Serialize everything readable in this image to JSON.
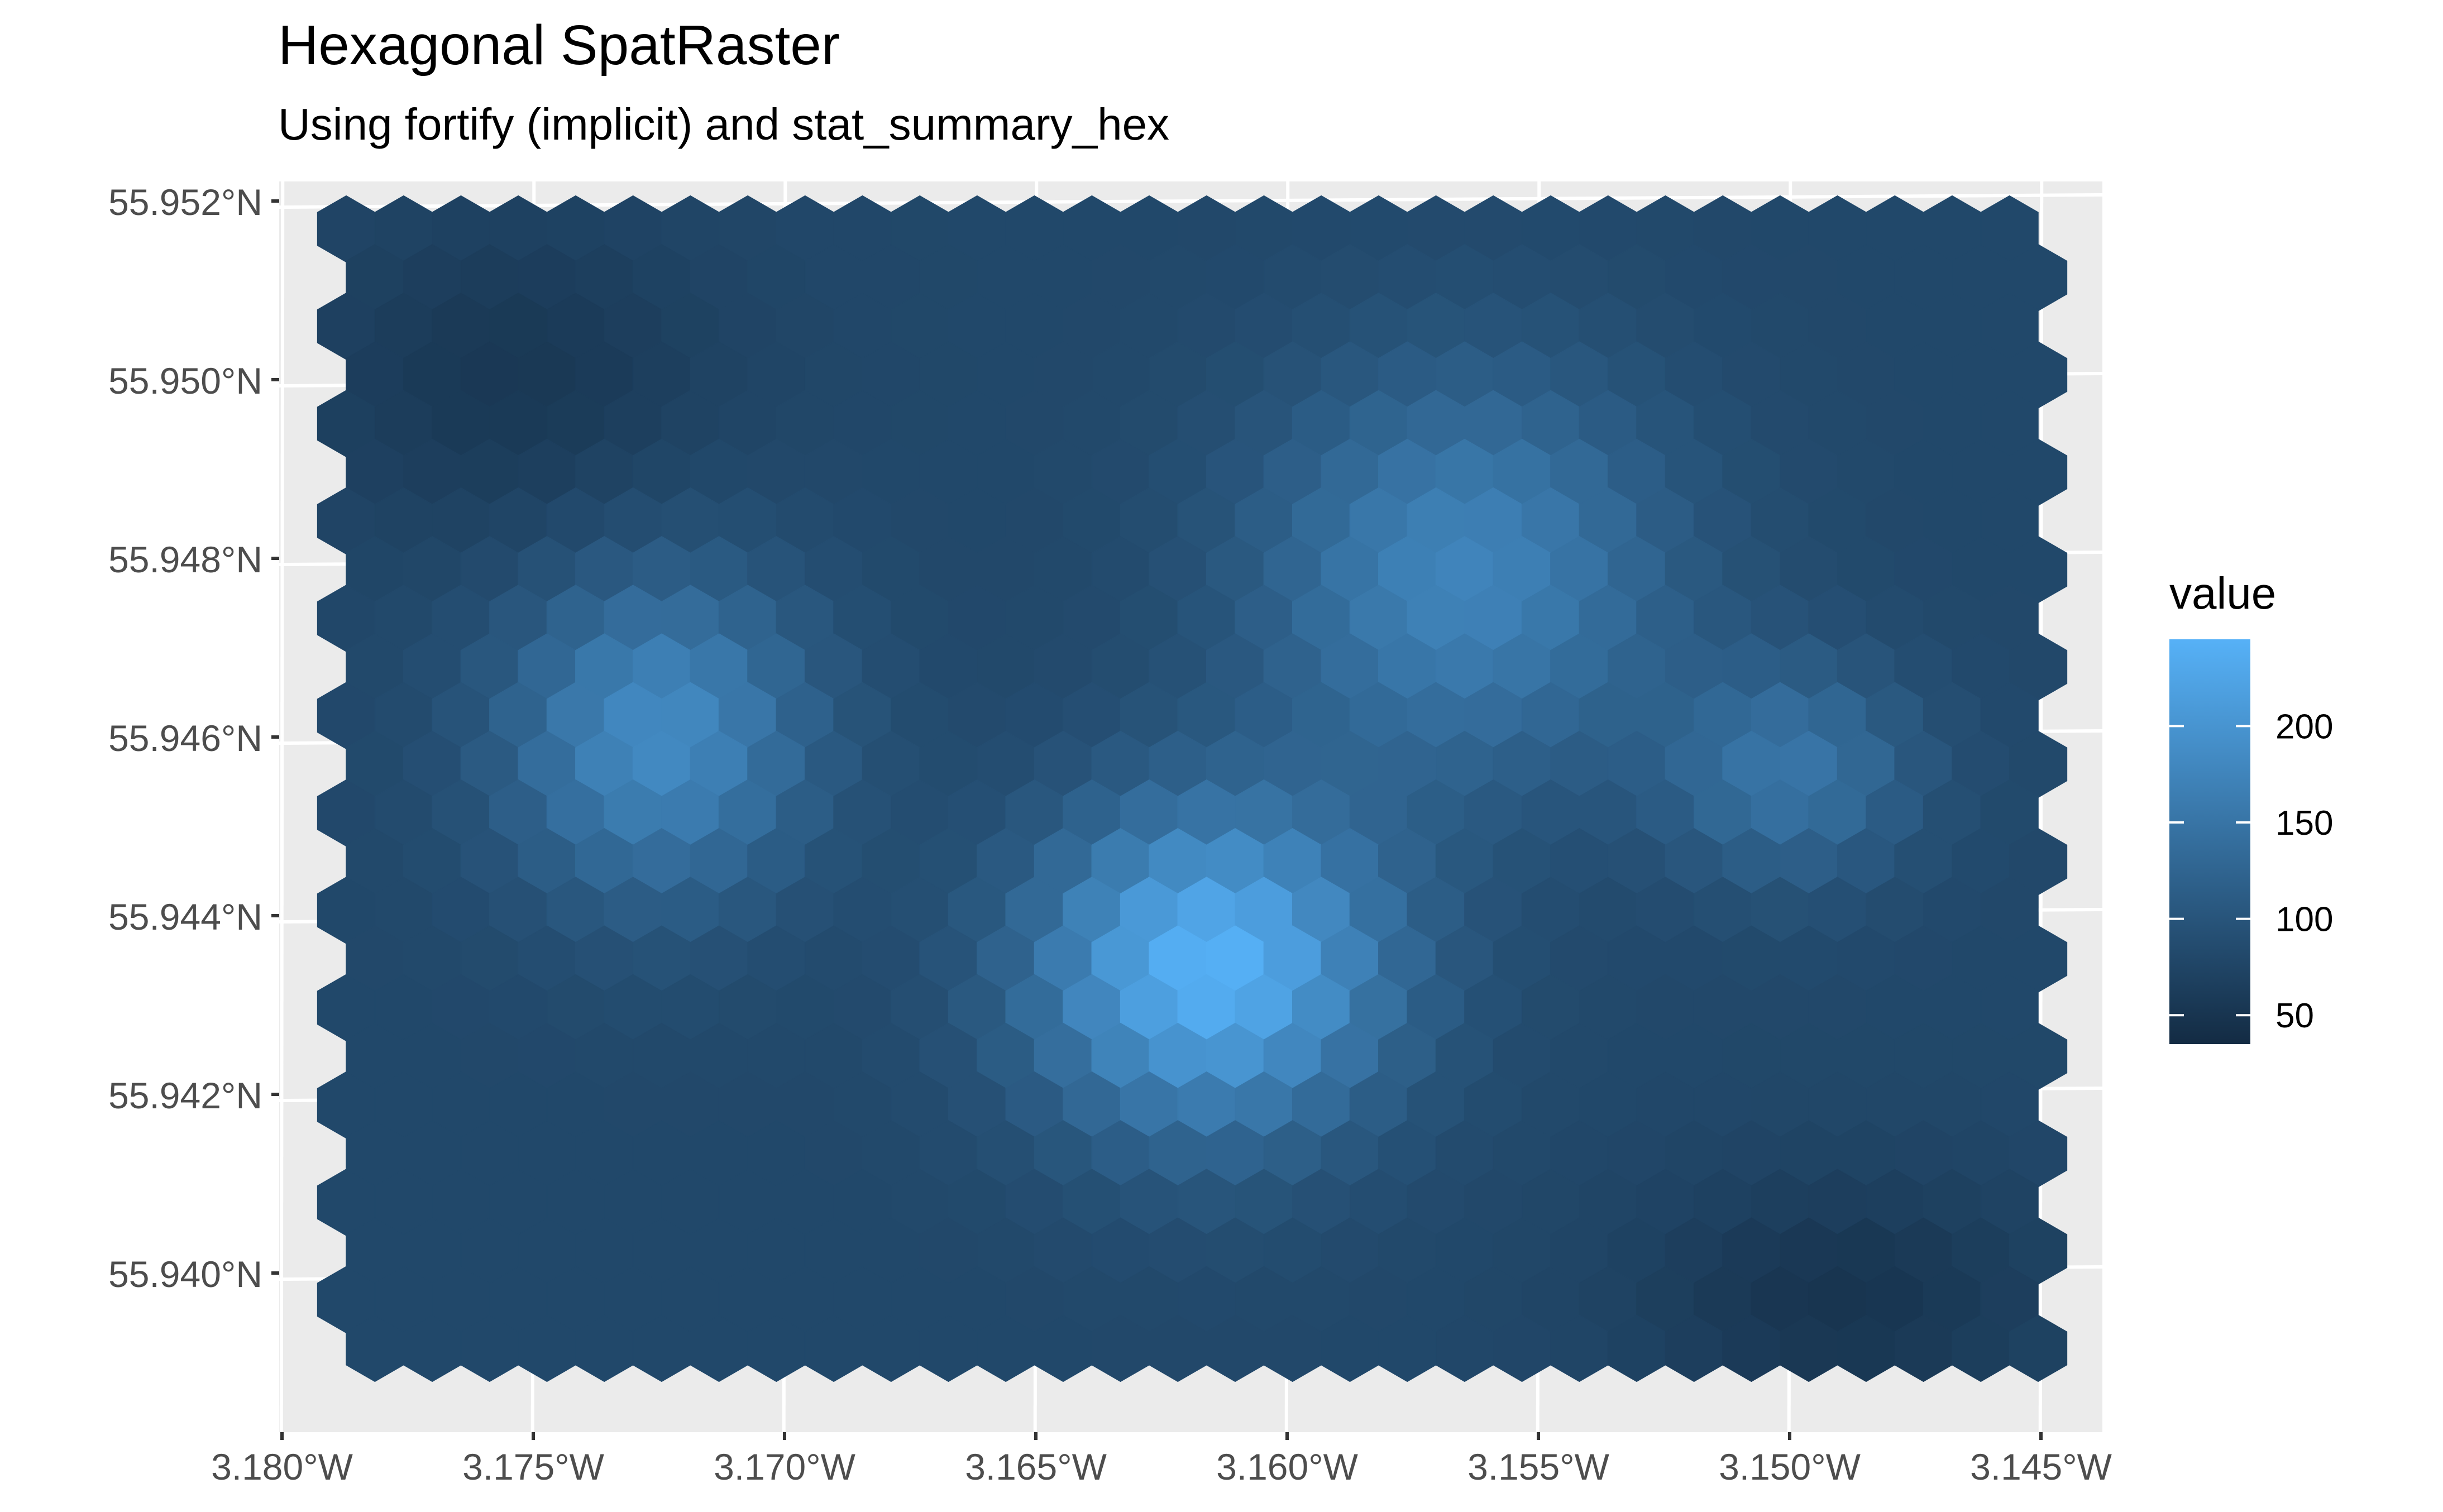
{
  "chart_data": {
    "type": "heatmap",
    "title": "Hexagonal SpatRaster",
    "subtitle": "Using fortify (implicit) and stat_summary_hex",
    "xlabel": "",
    "ylabel": "",
    "x_ticks": [
      "3.180°W",
      "3.175°W",
      "3.170°W",
      "3.165°W",
      "3.160°W",
      "3.155°W",
      "3.150°W",
      "3.145°W"
    ],
    "y_ticks": [
      "55.952°N",
      "55.950°N",
      "55.948°N",
      "55.946°N",
      "55.944°N",
      "55.942°N",
      "55.940°N"
    ],
    "x_range_lon": [
      -3.1785,
      -3.1445
    ],
    "y_range_lat": [
      55.9386,
      55.9516
    ],
    "value_range": [
      35,
      245
    ],
    "legend": {
      "title": "value",
      "ticks": [
        "200",
        "150",
        "100",
        "50"
      ],
      "placement": "right",
      "colors": {
        "low": "#132B43",
        "high": "#56B1F7"
      }
    },
    "blobs": [
      {
        "lon": -3.1615,
        "lat": 55.9434,
        "peak": 245,
        "spread_lon": 0.0035,
        "spread_lat": 0.0018
      },
      {
        "lon": -3.1725,
        "lat": 55.946,
        "peak": 185,
        "spread_lon": 0.003,
        "spread_lat": 0.0018
      },
      {
        "lon": -3.1565,
        "lat": 55.9478,
        "peak": 175,
        "spread_lon": 0.004,
        "spread_lat": 0.0022
      },
      {
        "lon": -3.15,
        "lat": 55.9456,
        "peak": 150,
        "spread_lon": 0.0025,
        "spread_lat": 0.0012
      }
    ],
    "base_value": 80,
    "grid": true,
    "panel_background": "#EBEBEB"
  }
}
